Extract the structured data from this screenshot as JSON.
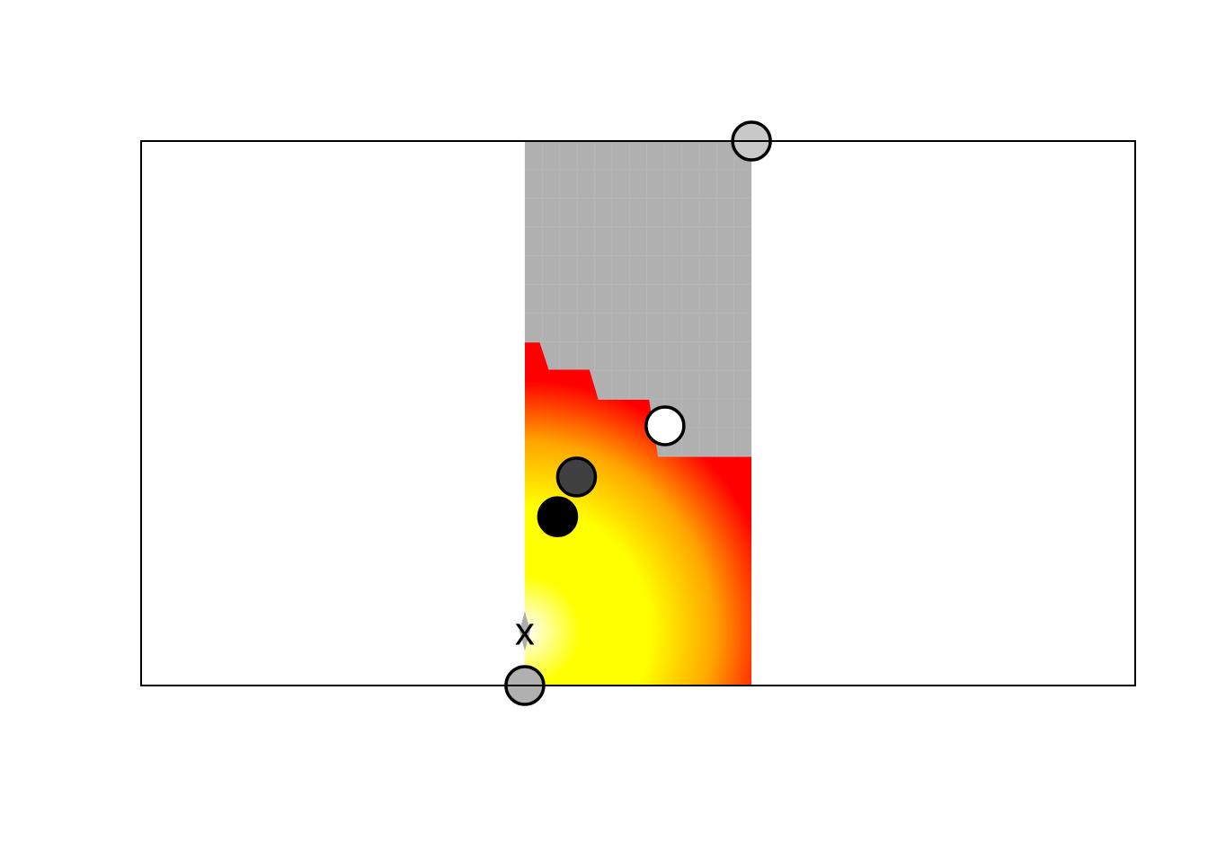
{
  "chart_data": {
    "type": "heatmap",
    "title": "",
    "xlabel": "",
    "ylabel": "",
    "xlim": [
      0,
      1
    ],
    "ylim": [
      0,
      1
    ],
    "axes_visible": false,
    "grid": false,
    "legend": "none",
    "colormap": [
      "#ffffff",
      "#ffff00",
      "#ffa500",
      "#ff0000"
    ],
    "masked_color": "#b0b0b0",
    "region": {
      "x_min": 0.386,
      "x_max": 0.614
    },
    "boundary_steps": [
      {
        "x_from": 0.386,
        "x_to": 0.41,
        "y": 0.63
      },
      {
        "x_from": 0.41,
        "x_to": 0.46,
        "y": 0.58
      },
      {
        "x_from": 0.46,
        "x_to": 0.52,
        "y": 0.525
      },
      {
        "x_from": 0.52,
        "x_to": 0.614,
        "y": 0.42
      }
    ],
    "optimum_marker": {
      "label": "x",
      "x": 0.386,
      "y": 0.1
    },
    "points": [
      {
        "x": 0.386,
        "y": 0.0,
        "fill": "#b0b0b0"
      },
      {
        "x": 0.614,
        "y": 1.0,
        "fill": "#c8c8c8"
      },
      {
        "x": 0.527,
        "y": 0.477,
        "fill": "#ffffff"
      },
      {
        "x": 0.438,
        "y": 0.383,
        "fill": "#404040"
      },
      {
        "x": 0.419,
        "y": 0.31,
        "fill": "#000000"
      }
    ]
  }
}
